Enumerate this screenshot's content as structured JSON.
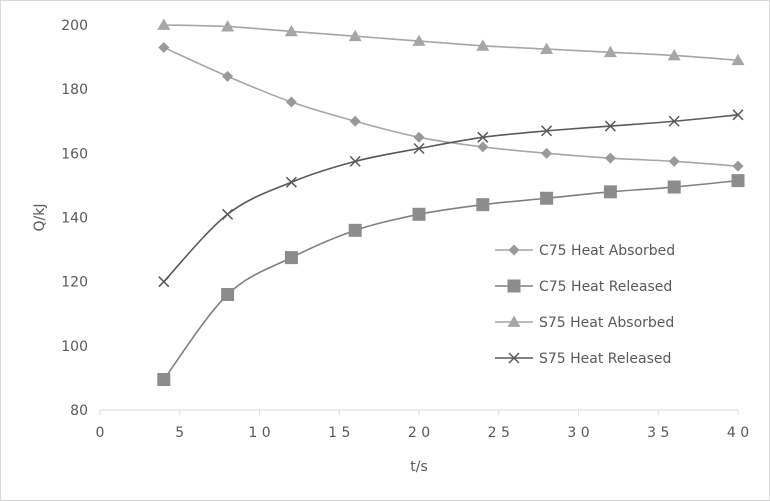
{
  "chart_data": {
    "type": "line",
    "xlabel": "t/s",
    "ylabel": "Q/kJ",
    "xlim": [
      0,
      40
    ],
    "ylim": [
      80,
      200
    ],
    "xticks": [
      0,
      5,
      10,
      15,
      20,
      25,
      30,
      35,
      40
    ],
    "xtick_labels": [
      "0",
      "5",
      "1 0",
      "1 5",
      "2 0",
      "2 5",
      "3 0",
      "3 5",
      "4 0"
    ],
    "yticks": [
      80,
      100,
      120,
      140,
      160,
      180,
      200
    ],
    "ytick_labels": [
      "80",
      "100",
      "120",
      "140",
      "160",
      "180",
      "200"
    ],
    "grid": false,
    "legend_position": "right-middle",
    "x": [
      4,
      8,
      12,
      16,
      20,
      24,
      28,
      32,
      36,
      40
    ],
    "series": [
      {
        "name": "C75 Heat Absorbed",
        "marker": "diamond",
        "color": "#a6a6a6",
        "markerColor": "#999999",
        "values": [
          193,
          184,
          176,
          170,
          165,
          162,
          160,
          158.5,
          157.5,
          156
        ]
      },
      {
        "name": "C75 Heat Released",
        "marker": "square",
        "color": "#808080",
        "markerColor": "#8c8c8c",
        "values": [
          89.5,
          116,
          127.5,
          136,
          141,
          144,
          146,
          148,
          149.5,
          151.5
        ]
      },
      {
        "name": "S75 Heat Absorbed",
        "marker": "triangle",
        "color": "#a6a6a6",
        "markerColor": "#a6a6a6",
        "values": [
          200,
          199.5,
          198,
          196.5,
          195,
          193.5,
          192.5,
          191.5,
          190.5,
          189
        ]
      },
      {
        "name": "S75 Heat Released",
        "marker": "cross",
        "color": "#595959",
        "markerColor": "#595959",
        "values": [
          120,
          141,
          151,
          157.5,
          161.5,
          165,
          167,
          168.5,
          170,
          172
        ]
      }
    ]
  }
}
